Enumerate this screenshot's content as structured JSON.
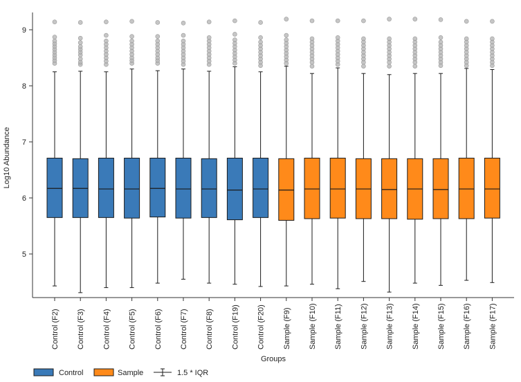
{
  "chart_data": {
    "type": "boxplot",
    "title": "",
    "xlabel": "Groups",
    "ylabel": "Log10 Abundance",
    "ylim": [
      4.2,
      9.25
    ],
    "yticks": [
      5,
      6,
      7,
      8,
      9
    ],
    "colors": {
      "Control": "#3a7ab8",
      "Sample": "#ff8a1a",
      "outlier": "#b3b3b3",
      "axis": "#333333"
    },
    "legend": {
      "position": "bottom-left",
      "entries": [
        {
          "label": "Control",
          "type": "box",
          "group": "Control"
        },
        {
          "label": "Sample",
          "type": "box",
          "group": "Sample"
        },
        {
          "label": "1.5 * IQR",
          "type": "whisker"
        }
      ]
    },
    "boxes": [
      {
        "label": "Control (F2)",
        "group": "Control",
        "q1": 5.65,
        "median": 6.17,
        "q3": 6.71,
        "whisker_low": 4.43,
        "whisker_high": 8.25,
        "outliers": [
          8.4,
          8.45,
          8.5,
          8.55,
          8.6,
          8.65,
          8.7,
          8.75,
          8.8,
          8.87,
          9.14
        ]
      },
      {
        "label": "Control (F3)",
        "group": "Control",
        "q1": 5.65,
        "median": 6.17,
        "q3": 6.7,
        "whisker_low": 4.31,
        "whisker_high": 8.26,
        "outliers": [
          8.38,
          8.42,
          8.48,
          8.55,
          8.6,
          8.65,
          8.7,
          8.77,
          8.85,
          9.13
        ]
      },
      {
        "label": "Control (F4)",
        "group": "Control",
        "q1": 5.65,
        "median": 6.16,
        "q3": 6.71,
        "whisker_low": 4.4,
        "whisker_high": 8.25,
        "outliers": [
          8.38,
          8.44,
          8.5,
          8.56,
          8.62,
          8.68,
          8.74,
          8.8,
          8.9,
          9.14
        ]
      },
      {
        "label": "Control (F5)",
        "group": "Control",
        "q1": 5.64,
        "median": 6.16,
        "q3": 6.71,
        "whisker_low": 4.4,
        "whisker_high": 8.3,
        "outliers": [
          8.4,
          8.45,
          8.5,
          8.56,
          8.62,
          8.68,
          8.74,
          8.8,
          8.88,
          9.15
        ]
      },
      {
        "label": "Control (F6)",
        "group": "Control",
        "q1": 5.66,
        "median": 6.17,
        "q3": 6.71,
        "whisker_low": 4.48,
        "whisker_high": 8.27,
        "outliers": [
          8.4,
          8.45,
          8.5,
          8.56,
          8.62,
          8.68,
          8.74,
          8.8,
          8.88,
          9.13
        ]
      },
      {
        "label": "Control (F7)",
        "group": "Control",
        "q1": 5.64,
        "median": 6.16,
        "q3": 6.71,
        "whisker_low": 4.55,
        "whisker_high": 8.3,
        "outliers": [
          8.38,
          8.44,
          8.5,
          8.56,
          8.62,
          8.68,
          8.74,
          8.8,
          8.9,
          9.12
        ]
      },
      {
        "label": "Control (F8)",
        "group": "Control",
        "q1": 5.65,
        "median": 6.16,
        "q3": 6.7,
        "whisker_low": 4.48,
        "whisker_high": 8.26,
        "outliers": [
          8.38,
          8.44,
          8.5,
          8.56,
          8.62,
          8.68,
          8.74,
          8.8,
          8.86,
          9.14
        ]
      },
      {
        "label": "Control (F19)",
        "group": "Control",
        "q1": 5.61,
        "median": 6.14,
        "q3": 6.71,
        "whisker_low": 4.46,
        "whisker_high": 8.34,
        "outliers": [
          8.4,
          8.46,
          8.52,
          8.58,
          8.64,
          8.7,
          8.76,
          8.82,
          8.92,
          9.16
        ]
      },
      {
        "label": "Control (F20)",
        "group": "Control",
        "q1": 5.65,
        "median": 6.16,
        "q3": 6.71,
        "whisker_low": 4.42,
        "whisker_high": 8.25,
        "outliers": [
          8.36,
          8.42,
          8.48,
          8.54,
          8.6,
          8.66,
          8.72,
          8.78,
          8.86,
          9.13
        ]
      },
      {
        "label": "Sample (F9)",
        "group": "Sample",
        "q1": 5.6,
        "median": 6.14,
        "q3": 6.7,
        "whisker_low": 4.43,
        "whisker_high": 8.35,
        "outliers": [
          8.4,
          8.46,
          8.52,
          8.58,
          8.64,
          8.7,
          8.76,
          8.82,
          8.9,
          9.19
        ]
      },
      {
        "label": "Sample (F10)",
        "group": "Sample",
        "q1": 5.63,
        "median": 6.16,
        "q3": 6.71,
        "whisker_low": 4.46,
        "whisker_high": 8.22,
        "outliers": [
          8.35,
          8.42,
          8.48,
          8.54,
          8.6,
          8.66,
          8.72,
          8.78,
          8.84,
          9.16
        ]
      },
      {
        "label": "Sample (F11)",
        "group": "Sample",
        "q1": 5.64,
        "median": 6.16,
        "q3": 6.71,
        "whisker_low": 4.38,
        "whisker_high": 8.32,
        "outliers": [
          8.38,
          8.44,
          8.5,
          8.56,
          8.62,
          8.68,
          8.74,
          8.8,
          8.86,
          9.16
        ]
      },
      {
        "label": "Sample (F12)",
        "group": "Sample",
        "q1": 5.63,
        "median": 6.16,
        "q3": 6.7,
        "whisker_low": 4.51,
        "whisker_high": 8.22,
        "outliers": [
          8.35,
          8.42,
          8.48,
          8.54,
          8.6,
          8.66,
          8.72,
          8.78,
          8.84,
          9.16
        ]
      },
      {
        "label": "Sample (F13)",
        "group": "Sample",
        "q1": 5.63,
        "median": 6.15,
        "q3": 6.7,
        "whisker_low": 4.32,
        "whisker_high": 8.2,
        "outliers": [
          8.35,
          8.42,
          8.48,
          8.54,
          8.6,
          8.66,
          8.72,
          8.78,
          8.84,
          9.19
        ]
      },
      {
        "label": "Sample (F14)",
        "group": "Sample",
        "q1": 5.62,
        "median": 6.16,
        "q3": 6.7,
        "whisker_low": 4.48,
        "whisker_high": 8.22,
        "outliers": [
          8.35,
          8.42,
          8.48,
          8.54,
          8.6,
          8.66,
          8.72,
          8.78,
          8.84,
          9.19
        ]
      },
      {
        "label": "Sample (F15)",
        "group": "Sample",
        "q1": 5.63,
        "median": 6.15,
        "q3": 6.7,
        "whisker_low": 4.44,
        "whisker_high": 8.22,
        "outliers": [
          8.36,
          8.42,
          8.48,
          8.54,
          8.6,
          8.66,
          8.72,
          8.78,
          8.86,
          9.18
        ]
      },
      {
        "label": "Sample (F16)",
        "group": "Sample",
        "q1": 5.63,
        "median": 6.16,
        "q3": 6.71,
        "whisker_low": 4.53,
        "whisker_high": 8.31,
        "outliers": [
          8.36,
          8.42,
          8.48,
          8.54,
          8.6,
          8.66,
          8.72,
          8.78,
          8.84,
          9.15
        ]
      },
      {
        "label": "Sample (F17)",
        "group": "Sample",
        "q1": 5.64,
        "median": 6.16,
        "q3": 6.71,
        "whisker_low": 4.49,
        "whisker_high": 8.29,
        "outliers": [
          8.36,
          8.42,
          8.48,
          8.54,
          8.6,
          8.66,
          8.72,
          8.78,
          8.84,
          9.15
        ]
      }
    ]
  }
}
